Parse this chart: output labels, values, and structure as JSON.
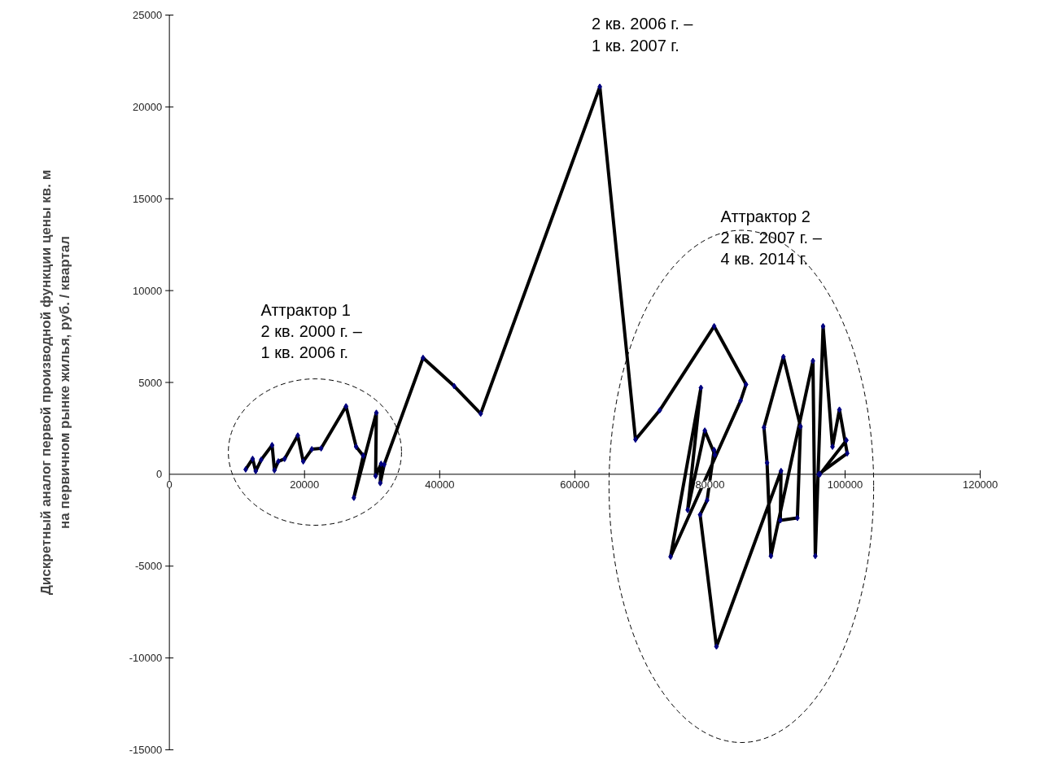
{
  "chart_data": {
    "type": "line",
    "ylabel": "Дискретный аналог первой производной функции цены кв. м\nна первичном рынке жилья, руб. / квартал",
    "xlim": [
      0,
      120000
    ],
    "xticks": [
      0,
      20000,
      40000,
      60000,
      80000,
      100000,
      120000
    ],
    "ylim": [
      -15000,
      25000
    ],
    "yticks": [
      -15000,
      -10000,
      -5000,
      0,
      5000,
      10000,
      15000,
      20000,
      25000
    ],
    "grid": false,
    "marker": "diamond",
    "line_style": "solid",
    "series": [
      {
        "color": "#000000",
        "x": [
          11290,
          12320,
          12780,
          13590,
          15200,
          15550,
          16120,
          17050,
          19000,
          19810,
          21080,
          22460,
          26140,
          27640,
          28680,
          27300,
          30630,
          30520,
          31330,
          31210,
          31790,
          37540,
          42150,
          46070,
          63700,
          68980,
          72560,
          80620,
          85340,
          84530,
          74170,
          78660,
          76700,
          79240,
          80730,
          80620,
          79580,
          78540,
          80960,
          90520,
          90410,
          92940,
          93400,
          90870,
          87990,
          88450,
          89020,
          95240,
          95590,
          96740,
          98130,
          99160,
          100310,
          96090,
          96280,
          100190
        ],
        "values": [
          264,
          840,
          176,
          790,
          1585,
          220,
          700,
          840,
          2110,
          700,
          1365,
          1410,
          3700,
          1500,
          1010,
          -1280,
          3350,
          -90,
          570,
          -480,
          530,
          6340,
          4800,
          3300,
          21100,
          1890,
          3480,
          8060,
          4890,
          4000,
          -4490,
          4710,
          -1940,
          2380,
          1060,
          1320,
          -1410,
          -2200,
          -9380,
          180,
          -2510,
          -2380,
          2600,
          6390,
          2550,
          620,
          -4450,
          6170,
          -4450,
          8060,
          1500,
          3520,
          1140,
          0,
          0,
          1850
        ]
      }
    ],
    "annotations": [
      {
        "text": "2 кв. 2006 г. –\n1 кв. 2007 г.",
        "x": 63700,
        "y": 21100
      },
      "Аттрактор 1\n2 кв. 2000 г. –\n1 кв. 2006 г.",
      "Аттрактор 2\n2 кв. 2007 г. –\n4 кв. 2014 г."
    ]
  }
}
